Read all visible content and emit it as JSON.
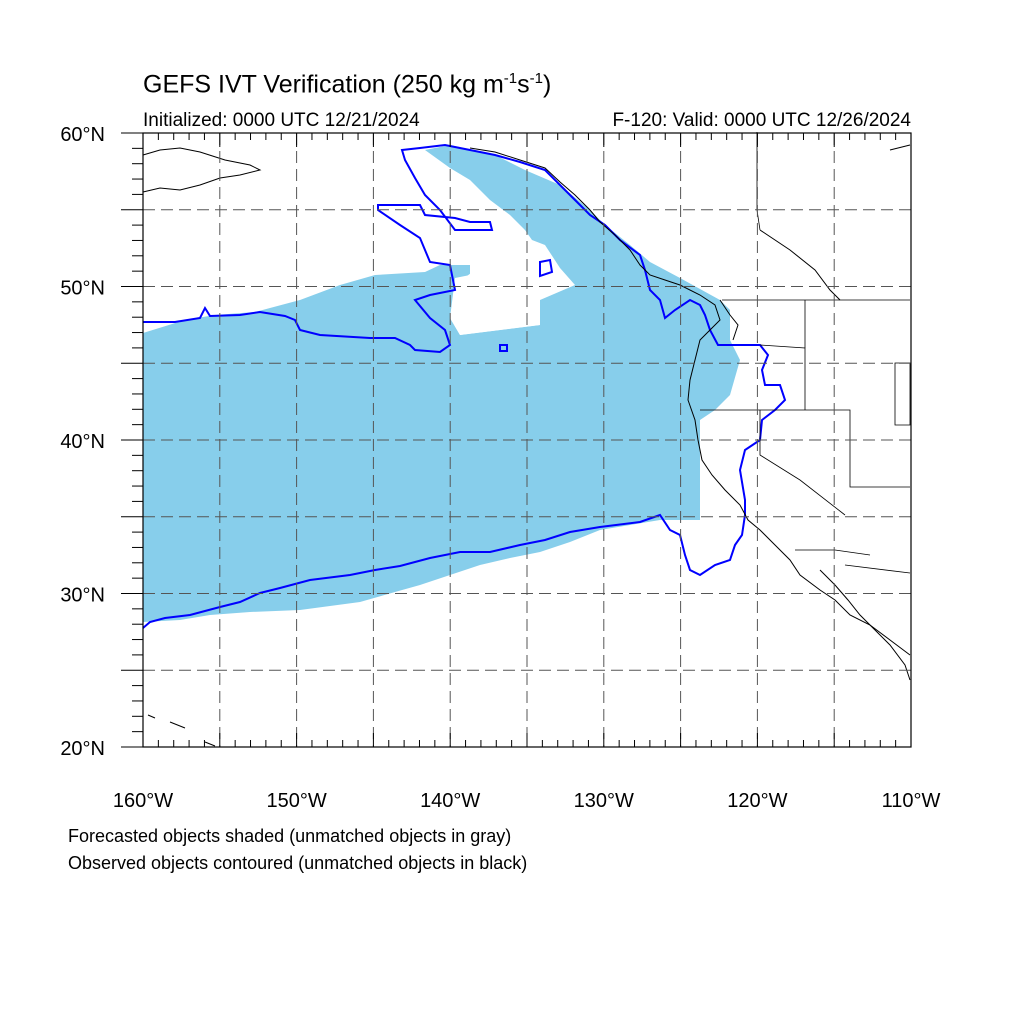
{
  "header": {
    "title_main": "GEFS IVT Verification (250 kg m",
    "title_exp1": "-1",
    "title_mid": "s",
    "title_exp2": "-1",
    "title_close": ")",
    "initialized": "Initialized: 0000 UTC 12/21/2024",
    "valid": "F-120: Valid: 0000 UTC 12/26/2024"
  },
  "map": {
    "lon_range": [
      -160,
      -110
    ],
    "lat_range": [
      20,
      60
    ],
    "gridlines": "dashed",
    "lon_labels": [
      "160°W",
      "150°W",
      "140°W",
      "130°W",
      "120°W",
      "110°W"
    ],
    "lat_labels": [
      "20°N",
      "30°N",
      "40°N",
      "50°N",
      "60°N"
    ],
    "forecast_fill_color": "#87ceeb",
    "observed_contour_color": "#0000ff",
    "coastline_color": "#000000"
  },
  "legend": {
    "line1": "Forecasted objects shaded (unmatched objects in gray)",
    "line2": "Observed objects contoured (unmatched objects in black)"
  }
}
